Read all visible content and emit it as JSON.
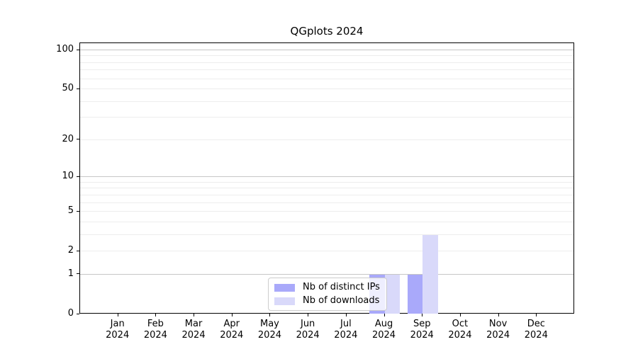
{
  "chart_data": {
    "type": "bar",
    "title": "QGplots 2024",
    "categories": [
      "Jan 2024",
      "Feb 2024",
      "Mar 2024",
      "Apr 2024",
      "May 2024",
      "Jun 2024",
      "Jul 2024",
      "Aug 2024",
      "Sep 2024",
      "Oct 2024",
      "Nov 2024",
      "Dec 2024"
    ],
    "series": [
      {
        "name": "Nb of distinct IPs",
        "color": "#a9a9fa",
        "values": [
          0,
          0,
          0,
          0,
          0,
          0,
          0,
          1,
          1,
          0,
          0,
          0
        ]
      },
      {
        "name": "Nb of downloads",
        "color": "#d9d9fa",
        "values": [
          0,
          0,
          0,
          0,
          0,
          0,
          0,
          1,
          3,
          0,
          0,
          0
        ]
      }
    ],
    "xlabel": "",
    "ylabel": "",
    "yscale": "log10(1+y)",
    "ylim": [
      0,
      113
    ],
    "yticks": [
      0,
      1,
      2,
      5,
      10,
      20,
      50,
      100
    ],
    "minor_gridlines": [
      2,
      3,
      4,
      5,
      6,
      7,
      8,
      9,
      20,
      30,
      40,
      50,
      60,
      70,
      80,
      90
    ],
    "major_gridlines": [
      1,
      10,
      100
    ],
    "grid": "horizontal",
    "legend_position": "lower center (inside plot)",
    "colors": {
      "spine": "#000000",
      "major_grid": "#c6c6c6",
      "minor_grid": "#ededed",
      "legend_border": "#cccccc",
      "background": "#ffffff"
    }
  }
}
